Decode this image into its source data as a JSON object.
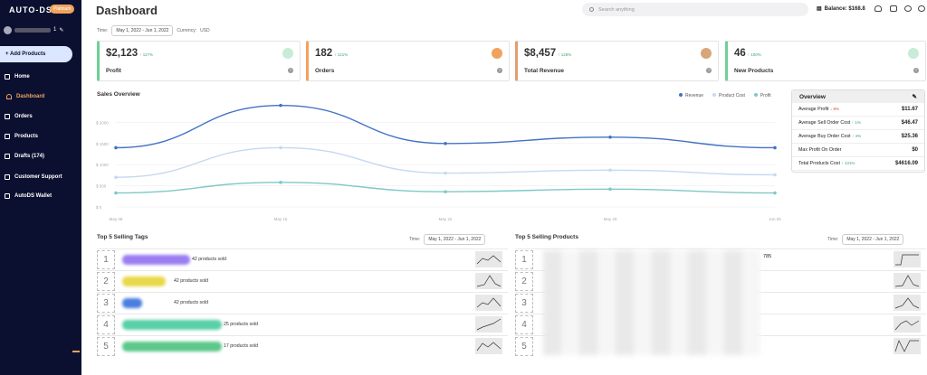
{
  "app": {
    "logo": "AUTO-DS",
    "plan_badge": "Platinum",
    "account_suffix": "1"
  },
  "sidebar": {
    "add_button": "+ Add Products",
    "items": [
      {
        "label": "Home",
        "active": false
      },
      {
        "label": "Dashboard",
        "active": true
      },
      {
        "label": "Orders",
        "active": false
      },
      {
        "label": "Products",
        "active": false
      },
      {
        "label": "Drafts (174)",
        "active": false
      },
      {
        "label": "Customer Support",
        "active": false
      },
      {
        "label": "AutoDS Wallet",
        "active": false
      }
    ]
  },
  "header": {
    "title": "Dashboard",
    "search_placeholder": "Search anything",
    "balance": "Balance: $168.8"
  },
  "filter": {
    "time_label": "Time:",
    "date_range": "May 1, 2022 - Jun 1, 2022",
    "currency_label": "Currency:",
    "currency": "USD"
  },
  "cards": [
    {
      "value": "$2,123",
      "change": "↑ 117%",
      "label": "Profit",
      "color": "#6fcf97"
    },
    {
      "value": "182",
      "change": "↑ 121%",
      "label": "Orders",
      "color": "#f0a35e"
    },
    {
      "value": "$8,457",
      "change": "↑ 126%",
      "label": "Total Revenue",
      "color": "#e0a070"
    },
    {
      "value": "46",
      "change": "↑ 100%",
      "label": "New Products",
      "color": "#6fcf97"
    }
  ],
  "sales": {
    "title": "Sales Overview",
    "legend": [
      "Revenue",
      "Product Cost",
      "Profit"
    ]
  },
  "chart_data": {
    "type": "line",
    "x": [
      "May 08",
      "May 15",
      "May 22",
      "May 29",
      "Jun 05"
    ],
    "y_ticks": [
      "$ 2000",
      "$ 1500",
      "$ 1000",
      "$ 500",
      "$ 0"
    ],
    "ylim": [
      0,
      2500
    ],
    "series": [
      {
        "name": "Revenue",
        "color": "#4472c4",
        "values": [
          1400,
          2400,
          1500,
          1650,
          1400
        ]
      },
      {
        "name": "Product Cost",
        "color": "#c5d9f1",
        "values": [
          700,
          1400,
          800,
          870,
          760
        ]
      },
      {
        "name": "Profit",
        "color": "#7fc8c8",
        "values": [
          330,
          580,
          360,
          420,
          330
        ]
      }
    ]
  },
  "overview": {
    "title": "Overview",
    "rows": [
      {
        "label": "Average Profit",
        "change": "↓ 8%",
        "dir": "down",
        "value": "$11.67"
      },
      {
        "label": "Average Sell Order Cost",
        "change": "↑ 1%",
        "dir": "up",
        "value": "$46.47"
      },
      {
        "label": "Average Buy Order Cost",
        "change": "↑ 4%",
        "dir": "up",
        "value": "$25.36"
      },
      {
        "label": "Max Profit On Order",
        "change": "",
        "dir": "",
        "value": "$0"
      },
      {
        "label": "Total Products Cost",
        "change": "↑ 131%",
        "dir": "up",
        "value": "$4616.09"
      }
    ]
  },
  "tags": {
    "title": "Top 5 Selling Tags",
    "time_label": "Time:",
    "date_range": "May 1, 2022 - Jun 1, 2022",
    "rows": [
      {
        "rank": "1",
        "sold": "42 products sold",
        "color": "#9b7cf2"
      },
      {
        "rank": "2",
        "sold": "42 products sold",
        "color": "#e8d84a"
      },
      {
        "rank": "3",
        "sold": "42 products sold",
        "color": "#4a7fe0"
      },
      {
        "rank": "4",
        "sold": "25 products sold",
        "color": "#58d0a8"
      },
      {
        "rank": "5",
        "sold": "17 products sold",
        "color": "#5cc88a"
      }
    ]
  },
  "products": {
    "title": "Top 5 Selling Products",
    "time_label": "Time:",
    "date_range": "May 1, 2022 - Jun 1, 2022",
    "fragment": "785",
    "ranks": [
      "1",
      "2",
      "3",
      "4",
      "5"
    ]
  }
}
